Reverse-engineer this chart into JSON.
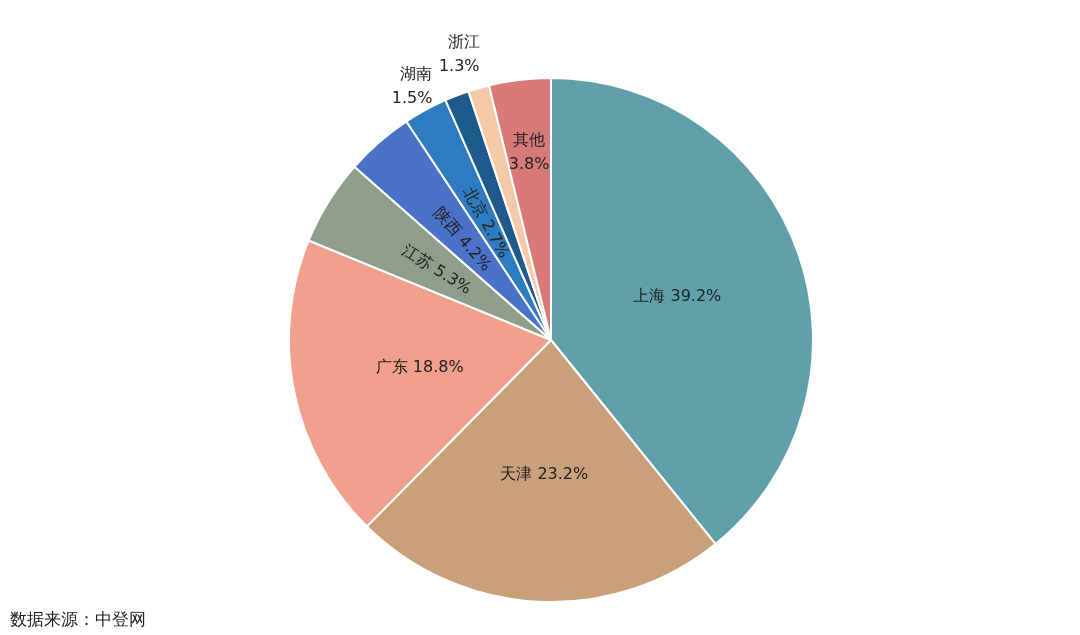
{
  "chart_data": {
    "type": "pie",
    "categories": [
      "上海",
      "天津",
      "广东",
      "江苏",
      "陕西",
      "北京",
      "湖南",
      "浙江",
      "其他"
    ],
    "values": [
      39.2,
      23.2,
      18.8,
      5.3,
      4.2,
      2.7,
      1.5,
      1.3,
      3.8
    ],
    "value_labels": [
      "39.2%",
      "23.2%",
      "18.8%",
      "5.3%",
      "4.2%",
      "2.7%",
      "1.5%",
      "1.3%",
      "3.8%"
    ],
    "colors": [
      "#5fa0aa",
      "#c9a07a",
      "#f0a08c",
      "#8f9e8a",
      "#4a72c8",
      "#2e7bbf",
      "#1f5a8c",
      "#f5c8a8",
      "#d87a78"
    ],
    "annotations": [
      "数据来源：中登网"
    ]
  }
}
